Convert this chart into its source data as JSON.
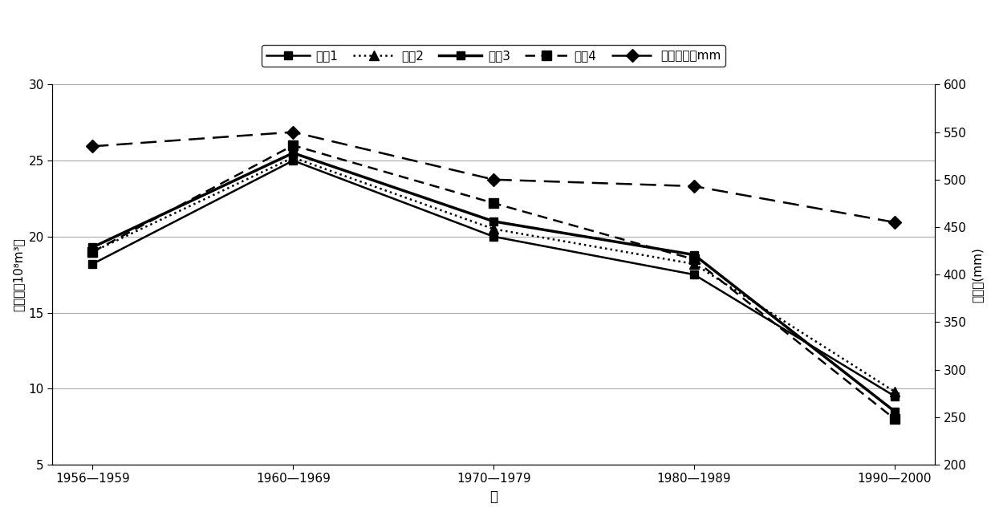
{
  "x_labels": [
    "1956—1959",
    "1960—1969",
    "1970—1979",
    "1980—1989",
    "1990—2000"
  ],
  "x_positions": [
    0,
    1,
    2,
    3,
    4
  ],
  "scenario1": [
    18.2,
    25.0,
    20.0,
    17.5,
    9.5
  ],
  "scenario2": [
    19.0,
    25.2,
    20.5,
    18.2,
    9.8
  ],
  "scenario3": [
    19.3,
    25.5,
    21.0,
    18.8,
    8.5
  ],
  "scenario4": [
    19.0,
    26.0,
    22.2,
    18.5,
    8.0
  ],
  "rainfall": [
    535,
    550,
    500,
    493,
    455
  ],
  "ylabel_left": "径流量（10⁸m³）",
  "ylabel_right": "降水量(mm)",
  "xlabel": "年",
  "legend1": "情景1",
  "legend2": "情景2",
  "legend3": "情景3",
  "legend4": "情景4",
  "legend5": "年均降雨量mm",
  "ylim_left": [
    5,
    30
  ],
  "ylim_right": [
    200,
    600
  ],
  "yticks_left": [
    5,
    10,
    15,
    20,
    25,
    30
  ],
  "yticks_right": [
    200,
    250,
    300,
    350,
    400,
    450,
    500,
    550,
    600
  ],
  "color_main": "#000000",
  "background": "#ffffff",
  "grid_color": "#aaaaaa",
  "lw_thin": 1.8,
  "lw_thick": 2.5,
  "ms_sq": 7,
  "ms_tri": 8,
  "ms_dia": 8
}
